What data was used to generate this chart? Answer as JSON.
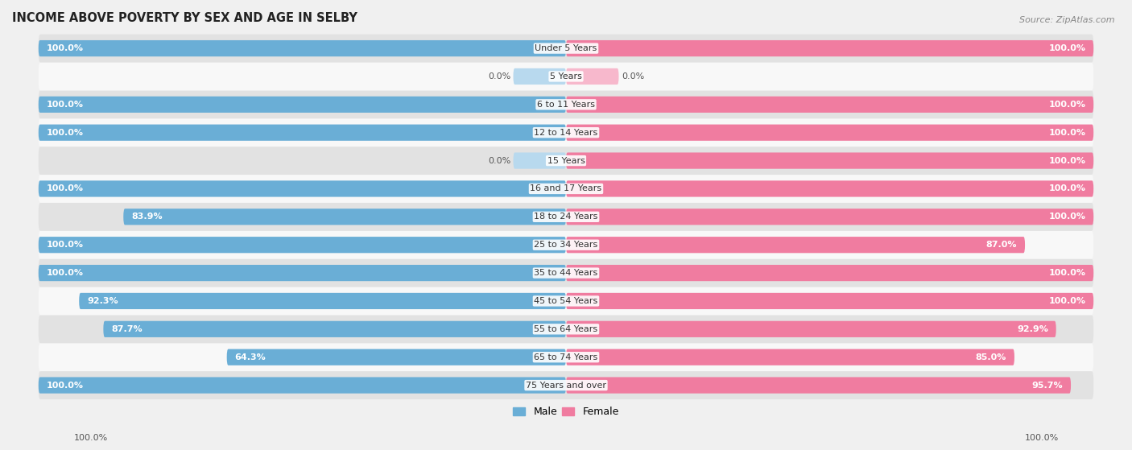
{
  "title": "INCOME ABOVE POVERTY BY SEX AND AGE IN SELBY",
  "source": "Source: ZipAtlas.com",
  "categories": [
    "Under 5 Years",
    "5 Years",
    "6 to 11 Years",
    "12 to 14 Years",
    "15 Years",
    "16 and 17 Years",
    "18 to 24 Years",
    "25 to 34 Years",
    "35 to 44 Years",
    "45 to 54 Years",
    "55 to 64 Years",
    "65 to 74 Years",
    "75 Years and over"
  ],
  "male_values": [
    100.0,
    0.0,
    100.0,
    100.0,
    0.0,
    100.0,
    83.9,
    100.0,
    100.0,
    92.3,
    87.7,
    64.3,
    100.0
  ],
  "female_values": [
    100.0,
    0.0,
    100.0,
    100.0,
    100.0,
    100.0,
    100.0,
    87.0,
    100.0,
    100.0,
    92.9,
    85.0,
    95.7
  ],
  "male_color": "#6aaed6",
  "female_color": "#f07ca0",
  "male_color_light": "#b8d9ee",
  "female_color_light": "#f7b8cc",
  "bg_color": "#f0f0f0",
  "row_color_dark": "#e2e2e2",
  "row_color_light": "#f8f8f8",
  "bar_height": 0.58,
  "axis_range": 100.0,
  "male_legend": "Male",
  "female_legend": "Female",
  "title_fontsize": 10.5,
  "label_fontsize": 8,
  "category_fontsize": 8,
  "source_fontsize": 8
}
